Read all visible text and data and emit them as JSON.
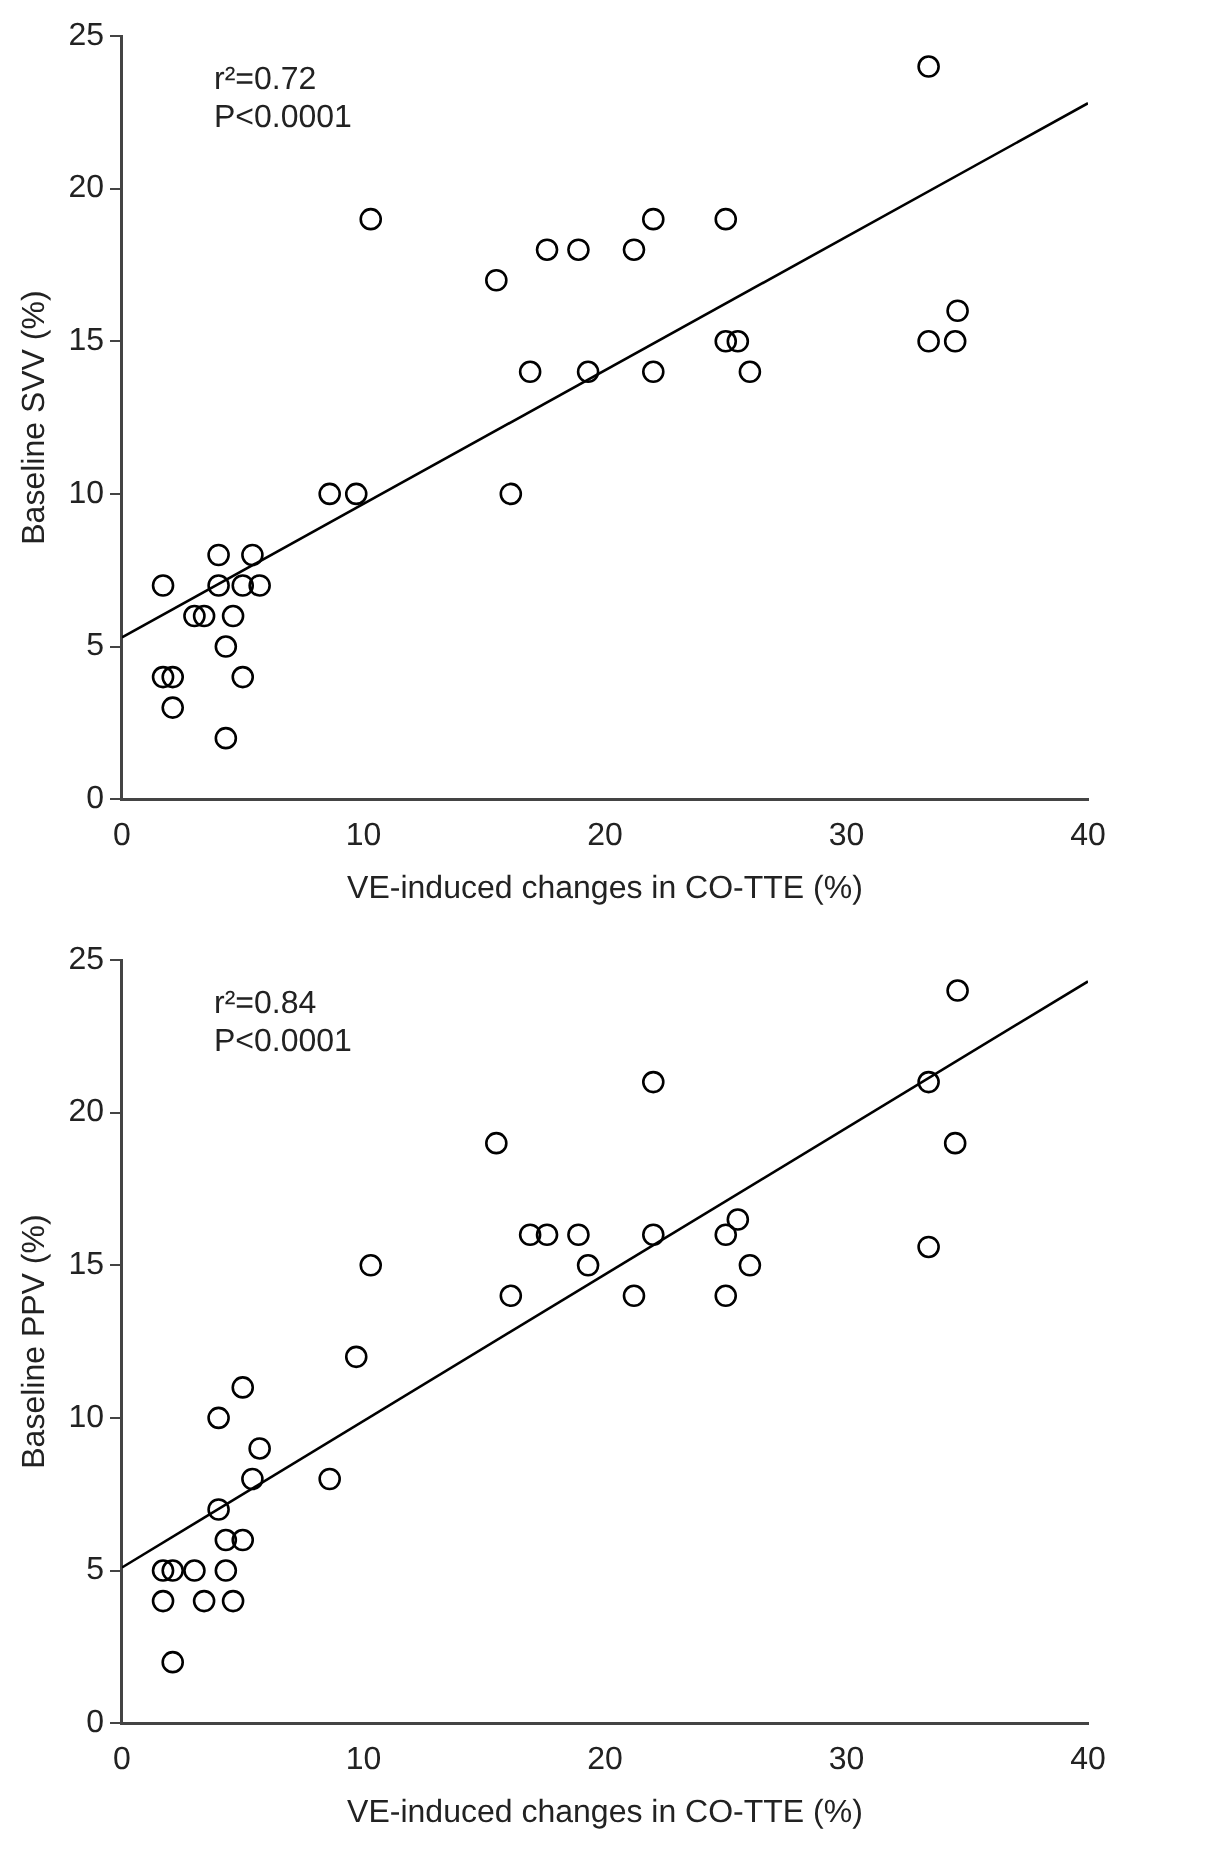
{
  "chart_data": [
    {
      "type": "scatter",
      "xlabel": "VE-induced changes in CO-TTE (%)",
      "ylabel": "Baseline SVV (%)",
      "annotations": [
        "r²=0.72",
        "P<0.0001"
      ],
      "xlim": [
        0,
        40
      ],
      "xticks": [
        0,
        10,
        20,
        30,
        40
      ],
      "ylim": [
        0,
        25
      ],
      "yticks": [
        0,
        5,
        10,
        15,
        20,
        25
      ],
      "grid": false,
      "legend": false,
      "series": [
        {
          "marker": "circle",
          "color": "#000000",
          "x": [
            1.7,
            1.7,
            2.1,
            2.1,
            3,
            3.4,
            4,
            4,
            4.3,
            4.6,
            4.3,
            5,
            5.4,
            5.7,
            5,
            8.6,
            9.7,
            10.3,
            15.5,
            16.1,
            16.9,
            17.6,
            18.9,
            19.3,
            21.2,
            22,
            22,
            25,
            25,
            25.5,
            26,
            33.4,
            33.4,
            34.5,
            34.6
          ],
          "values": [
            7,
            4,
            4,
            3,
            6,
            6,
            8,
            7,
            5,
            6,
            2,
            7,
            8,
            7,
            4,
            10,
            10,
            19,
            17,
            10,
            14,
            18,
            18,
            14,
            18,
            19,
            14,
            19,
            15,
            15,
            14,
            24,
            15,
            15,
            16
          ]
        },
        {
          "type": "line",
          "marker": "none",
          "color": "#000000",
          "x": [
            0,
            40
          ],
          "values": [
            5.3,
            22.8
          ]
        }
      ]
    },
    {
      "type": "scatter",
      "xlabel": "VE-induced changes in CO-TTE (%)",
      "ylabel": "Baseline PPV (%)",
      "annotations": [
        "r²=0.84",
        "P<0.0001"
      ],
      "xlim": [
        0,
        40
      ],
      "xticks": [
        0,
        10,
        20,
        30,
        40
      ],
      "ylim": [
        0,
        25
      ],
      "yticks": [
        0,
        5,
        10,
        15,
        20,
        25
      ],
      "grid": false,
      "legend": false,
      "series": [
        {
          "marker": "circle",
          "color": "#000000",
          "x": [
            1.7,
            2.1,
            3,
            4.3,
            1.7,
            3.4,
            4.6,
            2.1,
            4,
            4.3,
            5,
            5.4,
            5.7,
            4,
            5,
            8.6,
            9.7,
            10.3,
            15.5,
            16.1,
            16.9,
            17.6,
            18.9,
            19.3,
            21.2,
            22,
            22,
            25,
            25,
            25.5,
            26,
            33.4,
            33.4,
            34.5,
            34.6
          ],
          "values": [
            5,
            5,
            5,
            5,
            4,
            4,
            4,
            2,
            7,
            6,
            6,
            8,
            9,
            10,
            11,
            8,
            12,
            15,
            19,
            14,
            16,
            16,
            16,
            15,
            14,
            21,
            16,
            16,
            14,
            16.5,
            15,
            21,
            15.6,
            19,
            24
          ]
        },
        {
          "type": "line",
          "marker": "none",
          "color": "#000000",
          "x": [
            0,
            40
          ],
          "values": [
            5.1,
            24.3
          ]
        }
      ]
    }
  ]
}
